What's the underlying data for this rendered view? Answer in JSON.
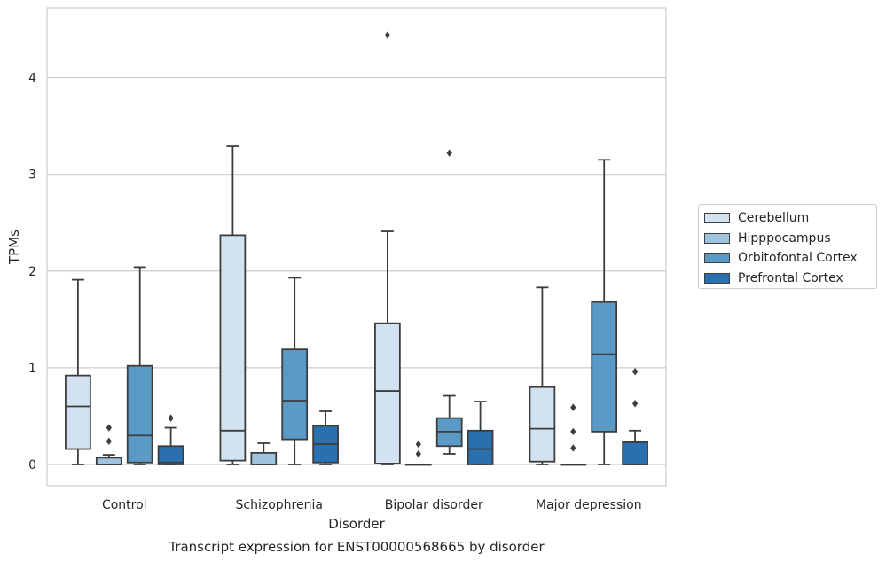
{
  "chart_data": {
    "type": "box",
    "title": "Transcript expression for ENST00000568665 by disorder",
    "xlabel": "Disorder",
    "ylabel": "TPMs",
    "ylim": [
      -0.22,
      4.72
    ],
    "yticks": [
      0,
      1,
      2,
      3,
      4
    ],
    "grid": "horizontal",
    "legend_position": "right",
    "categories": [
      "Control",
      "Schizophrenia",
      "Bipolar disorder",
      "Major depression"
    ],
    "series": [
      {
        "name": "Cerebellum",
        "color": "#d3e2f1",
        "boxes": [
          {
            "whisker_low": 0.0,
            "q1": 0.16,
            "median": 0.6,
            "q3": 0.92,
            "whisker_high": 1.91,
            "outliers": []
          },
          {
            "whisker_low": 0.0,
            "q1": 0.04,
            "median": 0.35,
            "q3": 2.37,
            "whisker_high": 3.29,
            "outliers": []
          },
          {
            "whisker_low": 0.0,
            "q1": 0.01,
            "median": 0.76,
            "q3": 1.46,
            "whisker_high": 2.41,
            "outliers": [
              4.44
            ]
          },
          {
            "whisker_low": 0.0,
            "q1": 0.03,
            "median": 0.37,
            "q3": 0.8,
            "whisker_high": 1.83,
            "outliers": []
          }
        ]
      },
      {
        "name": "Hipppocampus",
        "color": "#9fc4e0",
        "boxes": [
          {
            "whisker_low": 0.0,
            "q1": 0.0,
            "median": 0.0,
            "q3": 0.07,
            "whisker_high": 0.1,
            "outliers": [
              0.24,
              0.38
            ]
          },
          {
            "whisker_low": 0.0,
            "q1": 0.0,
            "median": 0.0,
            "q3": 0.12,
            "whisker_high": 0.22,
            "outliers": []
          },
          {
            "whisker_low": 0.0,
            "q1": 0.0,
            "median": 0.0,
            "q3": 0.0,
            "whisker_high": 0.0,
            "outliers": [
              0.11,
              0.21
            ]
          },
          {
            "whisker_low": 0.0,
            "q1": 0.0,
            "median": 0.0,
            "q3": 0.0,
            "whisker_high": 0.0,
            "outliers": [
              0.17,
              0.34,
              0.59
            ]
          }
        ]
      },
      {
        "name": "Orbitofontal Cortex",
        "color": "#5b9ac5",
        "boxes": [
          {
            "whisker_low": 0.0,
            "q1": 0.02,
            "median": 0.3,
            "q3": 1.02,
            "whisker_high": 2.04,
            "outliers": []
          },
          {
            "whisker_low": 0.0,
            "q1": 0.26,
            "median": 0.66,
            "q3": 1.19,
            "whisker_high": 1.93,
            "outliers": []
          },
          {
            "whisker_low": 0.11,
            "q1": 0.19,
            "median": 0.34,
            "q3": 0.48,
            "whisker_high": 0.71,
            "outliers": [
              3.22
            ]
          },
          {
            "whisker_low": 0.0,
            "q1": 0.34,
            "median": 1.14,
            "q3": 1.68,
            "whisker_high": 3.15,
            "outliers": []
          }
        ]
      },
      {
        "name": "Prefrontal Cortex",
        "color": "#2a6fae",
        "boxes": [
          {
            "whisker_low": 0.0,
            "q1": 0.0,
            "median": 0.02,
            "q3": 0.19,
            "whisker_high": 0.38,
            "outliers": [
              0.48
            ]
          },
          {
            "whisker_low": 0.0,
            "q1": 0.02,
            "median": 0.21,
            "q3": 0.4,
            "whisker_high": 0.55,
            "outliers": []
          },
          {
            "whisker_low": 0.0,
            "q1": 0.0,
            "median": 0.16,
            "q3": 0.35,
            "whisker_high": 0.65,
            "outliers": []
          },
          {
            "whisker_low": 0.0,
            "q1": 0.0,
            "median": 0.0,
            "q3": 0.23,
            "whisker_high": 0.35,
            "outliers": [
              0.63,
              0.96
            ]
          }
        ]
      }
    ]
  }
}
